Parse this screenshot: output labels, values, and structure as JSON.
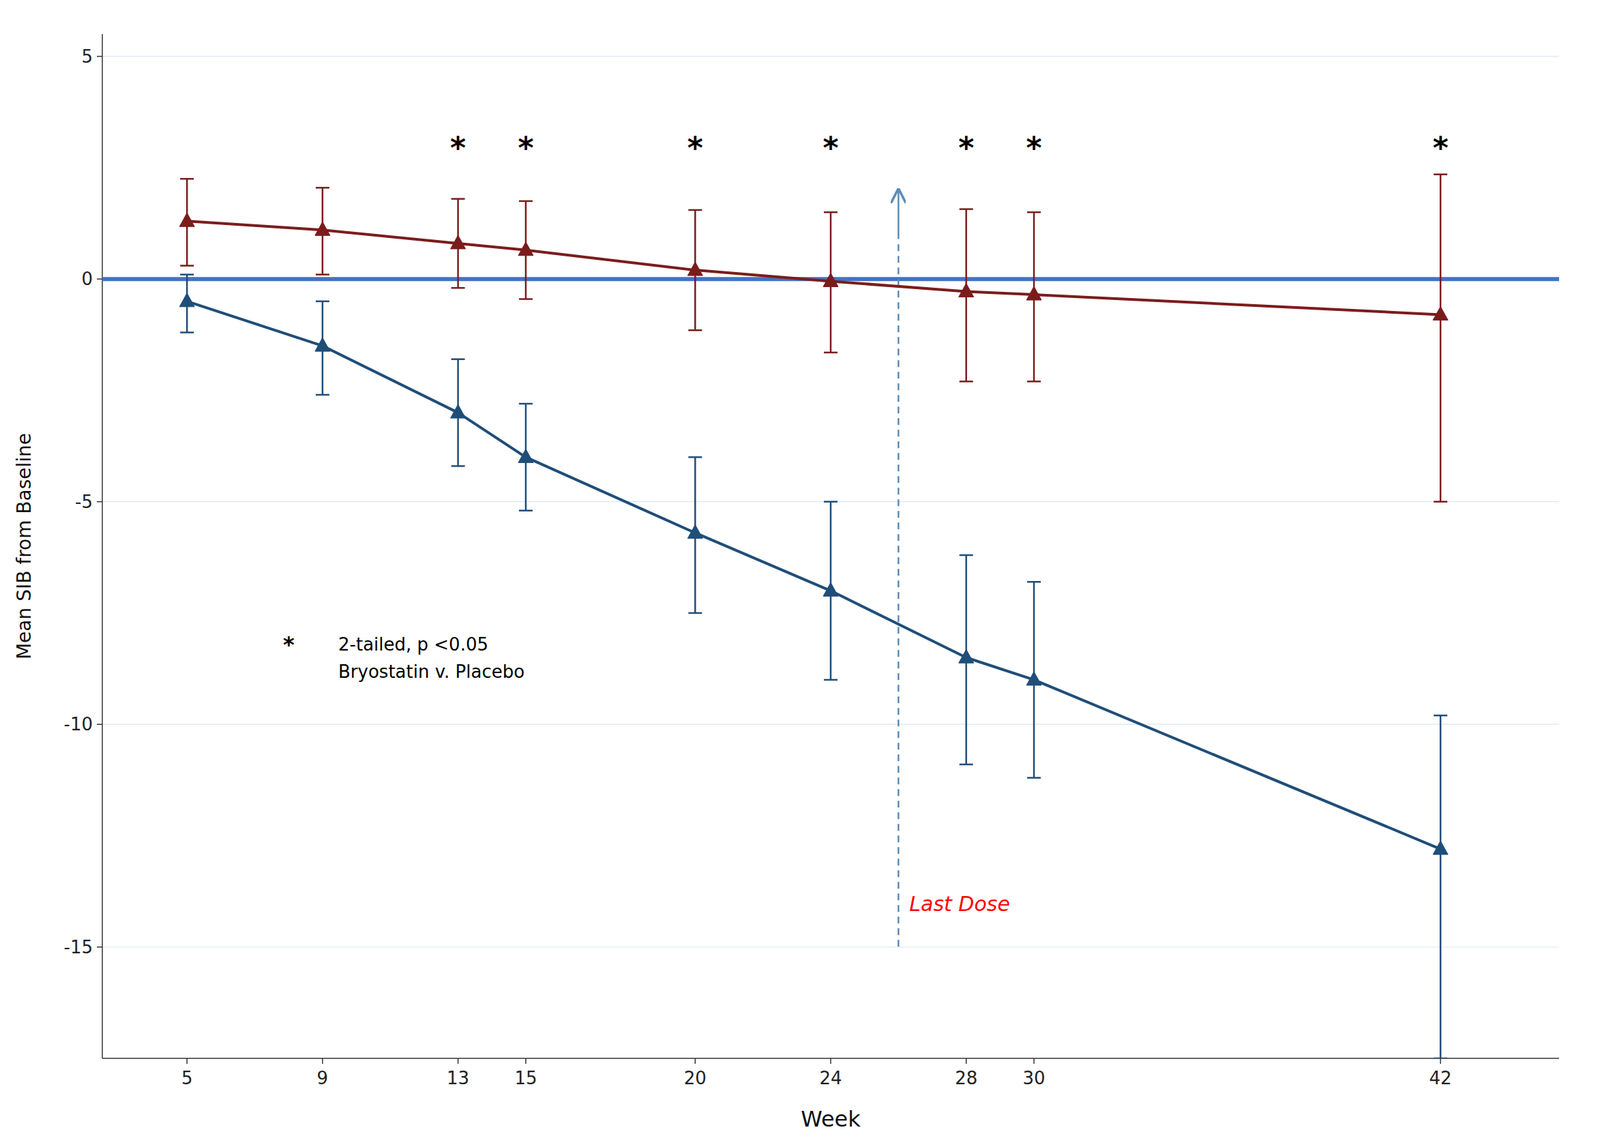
{
  "chart_data": {
    "type": "line",
    "x": [
      5,
      9,
      13,
      15,
      20,
      24,
      28,
      30,
      42
    ],
    "series": [
      {
        "color": "#1F4E79",
        "values": [
          -0.5,
          -1.5,
          -3.0,
          -4.0,
          -5.7,
          -7.0,
          -8.5,
          -9.0,
          -12.8
        ],
        "err_upper": [
          0.6,
          1.0,
          1.2,
          1.2,
          1.7,
          2.0,
          2.3,
          2.2,
          3.0
        ],
        "err_lower": [
          0.7,
          1.1,
          1.2,
          1.2,
          1.8,
          2.0,
          2.4,
          2.2,
          4.7
        ]
      },
      {
        "color": "#7B1C1C",
        "values": [
          1.3,
          1.1,
          0.8,
          0.65,
          0.2,
          -0.05,
          -0.28,
          -0.35,
          -0.8
        ],
        "err_upper": [
          0.95,
          0.95,
          1.0,
          1.1,
          1.35,
          1.55,
          1.85,
          1.85,
          3.15
        ],
        "err_lower": [
          1.0,
          1.0,
          1.0,
          1.1,
          1.35,
          1.6,
          2.02,
          1.95,
          4.2
        ]
      }
    ],
    "marker": "triangle",
    "line_style": "solid",
    "xlabel": "Week",
    "ylabel": "Mean SIB from Baseline",
    "xlim": [
      2.5,
      45.5
    ],
    "xticks": [
      5,
      9,
      13,
      15,
      20,
      24,
      28,
      30,
      42
    ],
    "ylim": [
      -17.5,
      5.5
    ],
    "yticks": [
      5,
      0,
      -5,
      -10,
      -15
    ],
    "grid": true,
    "reference_line": {
      "y": 0,
      "color": "#4472C4"
    },
    "significance": {
      "label": "*",
      "x": [
        13,
        15,
        20,
        24,
        28,
        30,
        42
      ]
    },
    "last_dose": {
      "x": 26.0,
      "label": "Last Dose",
      "color": "red"
    },
    "note": {
      "symbol": "*",
      "lines": [
        "2-tailed, p <0.05",
        "Bryostatin v. Placebo"
      ]
    }
  }
}
